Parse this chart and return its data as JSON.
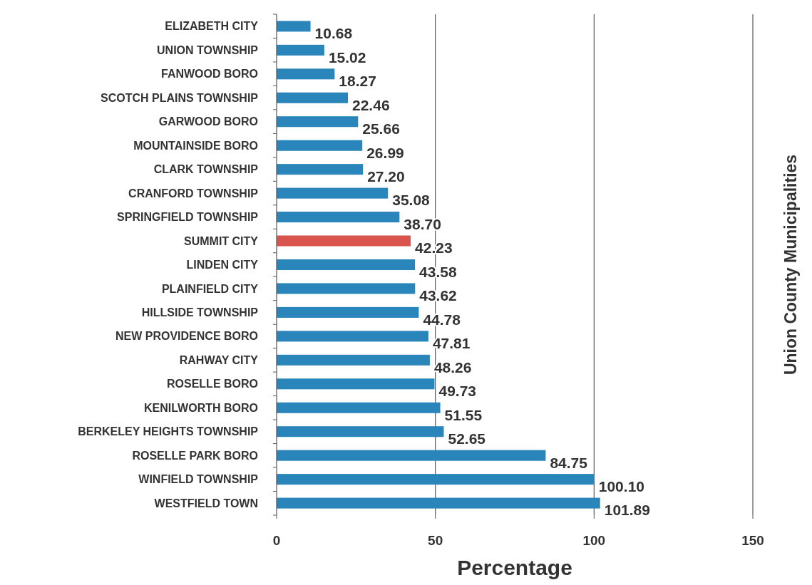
{
  "chart_data": {
    "type": "bar",
    "orientation": "horizontal",
    "xlabel": "Percentage",
    "ylabel": "Union County Municipalities",
    "categories": [
      "ELIZABETH CITY",
      "UNION TOWNSHIP",
      "FANWOOD BORO",
      "SCOTCH PLAINS TOWNSHIP",
      "GARWOOD BORO",
      "MOUNTAINSIDE BORO",
      "CLARK TOWNSHIP",
      "CRANFORD TOWNSHIP",
      "SPRINGFIELD TOWNSHIP",
      "SUMMIT CITY",
      "LINDEN CITY",
      "PLAINFIELD CITY",
      "HILLSIDE TOWNSHIP",
      "NEW PROVIDENCE BORO",
      "RAHWAY CITY",
      "ROSELLE BORO",
      "KENILWORTH BORO",
      "BERKELEY HEIGHTS TOWNSHIP",
      "ROSELLE PARK BORO",
      "WINFIELD TOWNSHIP",
      "WESTFIELD TOWN"
    ],
    "values": [
      10.68,
      15.02,
      18.27,
      22.46,
      25.66,
      26.99,
      27.2,
      35.08,
      38.7,
      42.23,
      43.58,
      43.62,
      44.78,
      47.81,
      48.26,
      49.73,
      51.55,
      52.65,
      84.75,
      100.1,
      101.89
    ],
    "value_labels": [
      "10.68",
      "15.02",
      "18.27",
      "22.46",
      "25.66",
      "26.99",
      "27.20",
      "35.08",
      "38.70",
      "42.23",
      "43.58",
      "43.62",
      "44.78",
      "47.81",
      "48.26",
      "49.73",
      "51.55",
      "52.65",
      "84.75",
      "100.10",
      "101.89"
    ],
    "colors": [
      "#2a86ba",
      "#2a86ba",
      "#2a86ba",
      "#2a86ba",
      "#2a86ba",
      "#2a86ba",
      "#2a86ba",
      "#2a86ba",
      "#2a86ba",
      "#d9544d",
      "#2a86ba",
      "#2a86ba",
      "#2a86ba",
      "#2a86ba",
      "#2a86ba",
      "#2a86ba",
      "#2a86ba",
      "#2a86ba",
      "#2a86ba",
      "#2a86ba",
      "#2a86ba"
    ],
    "xlim": [
      0,
      150
    ],
    "xticks": [
      0,
      50,
      100,
      150
    ],
    "grid": "x"
  }
}
